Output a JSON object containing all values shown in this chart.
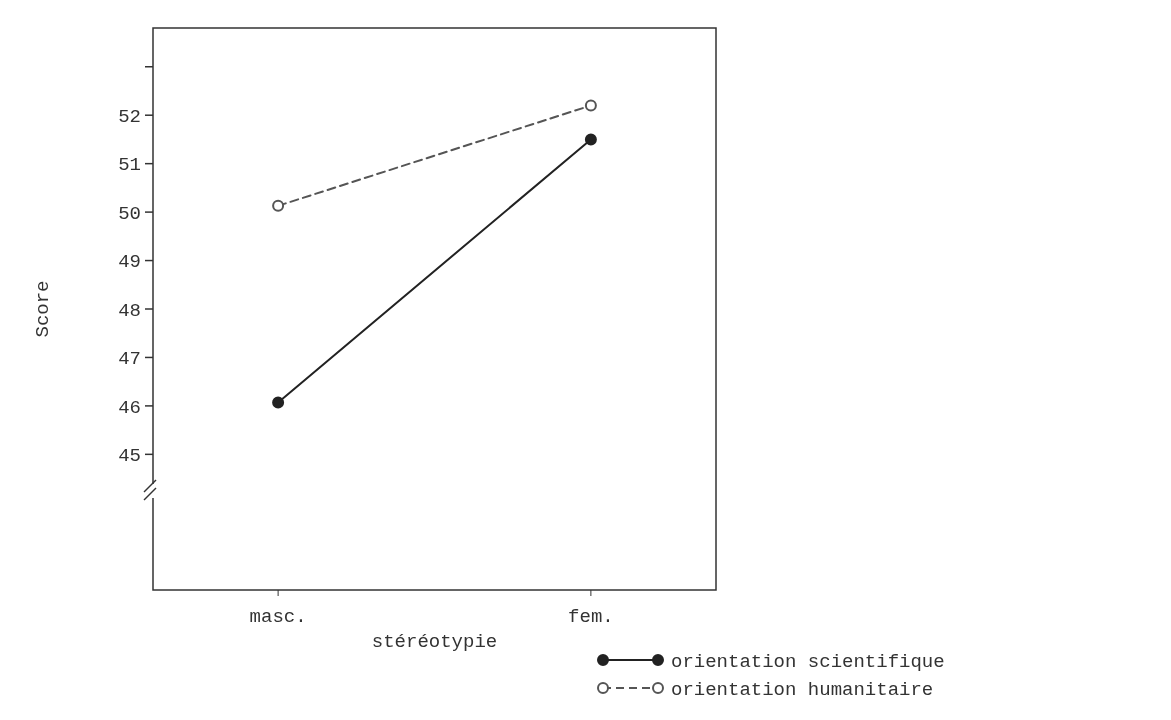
{
  "chart_data": {
    "type": "line",
    "xlabel": "stéréotypie",
    "ylabel": "Score",
    "categories": [
      "masc.",
      "fem."
    ],
    "series": [
      {
        "name": "orientation scientifique",
        "color": "#222222",
        "values": [
          46.07,
          51.5
        ],
        "line_style": "solid"
      },
      {
        "name": "orientation humanitaire",
        "color": "#555555",
        "values": [
          50.13,
          52.2
        ],
        "line_style": "dashed"
      }
    ],
    "ylim": [
      42.2,
      53.8
    ],
    "yticks": [
      45,
      46,
      47,
      48,
      49,
      50,
      51,
      52,
      {
        "value": 53,
        "label": null
      }
    ],
    "marker": "circle",
    "grid": false,
    "legend": "bottom right"
  }
}
